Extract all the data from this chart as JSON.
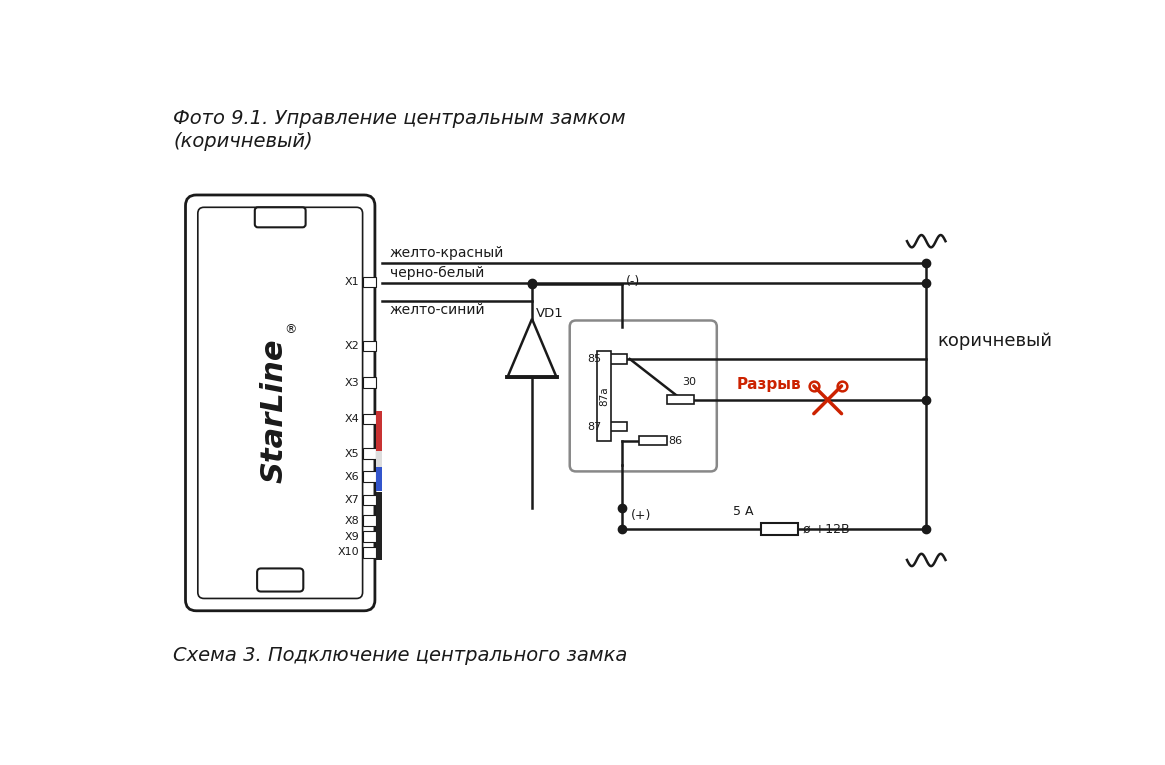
{
  "title_top": "Фото 9.1. Управление центральным замком\n(коричневый)",
  "title_bottom": "Схема 3. Подключение центрального замка",
  "bg_color": "#ffffff",
  "line_color": "#1a1a1a",
  "wire_labels": [
    "желто-красный",
    "черно-белый",
    "желто-синий"
  ],
  "connector_labels": [
    "X1",
    "X2",
    "X3",
    "X4",
    "X5",
    "X6",
    "X7",
    "X8",
    "X9",
    "X10"
  ],
  "vd_label": "VD1",
  "razryv_label": "Разрыв",
  "korichi_label": "коричневый",
  "fuse_label": "5 А",
  "power_label": "ø +12В",
  "minus_label": "(-)",
  "plus_label": "(+)",
  "scissors_color": "#cc2200"
}
